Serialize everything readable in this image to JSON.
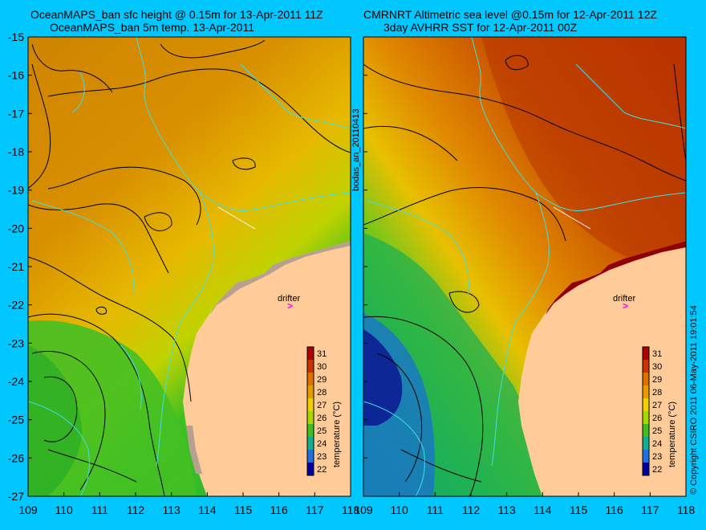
{
  "left_panel": {
    "title_line1": "OceanMAPS_ban sfc height @ 0.15m for 13-Apr-2011 11Z",
    "title_line2": "OceanMAPS_ban 5m temp. 13-Apr-2011"
  },
  "right_panel": {
    "title_line1": "CMRNRT Altimetric sea level  @0.15m  for 12-Apr-2011 12Z",
    "title_line2": "3day AVHRR SST for 12-Apr-2011 00Z"
  },
  "side_label": "bodas_an_20110413",
  "copyright": "© Copyright CSIRO 2011   06-May-2011 19:01:54",
  "drifter_label": "drifter",
  "y_ticks": [
    "-15",
    "-16",
    "-17",
    "-18",
    "-19",
    "-20",
    "-21",
    "-22",
    "-23",
    "-24",
    "-25",
    "-26",
    "-27"
  ],
  "x_ticks": [
    "109",
    "110",
    "111",
    "112",
    "113",
    "114",
    "115",
    "116",
    "117",
    "118"
  ],
  "colorbar": {
    "label": "temperature (°C)",
    "ticks": [
      "31",
      "30",
      "29",
      "28",
      "27",
      "26",
      "25",
      "24",
      "23",
      "22"
    ],
    "colors": [
      "#b00000",
      "#cc3300",
      "#e07000",
      "#e89a00",
      "#f0d000",
      "#a8d800",
      "#40c020",
      "#10b090",
      "#2070e0",
      "#0000a0"
    ]
  },
  "colors": {
    "background": "#00c8ff",
    "land": "#ffcc99",
    "warm": "#d48a00",
    "cool": "#40c020",
    "contour": "#000000",
    "coastline": "#40e0e0",
    "drifter": "#ff00ff"
  }
}
